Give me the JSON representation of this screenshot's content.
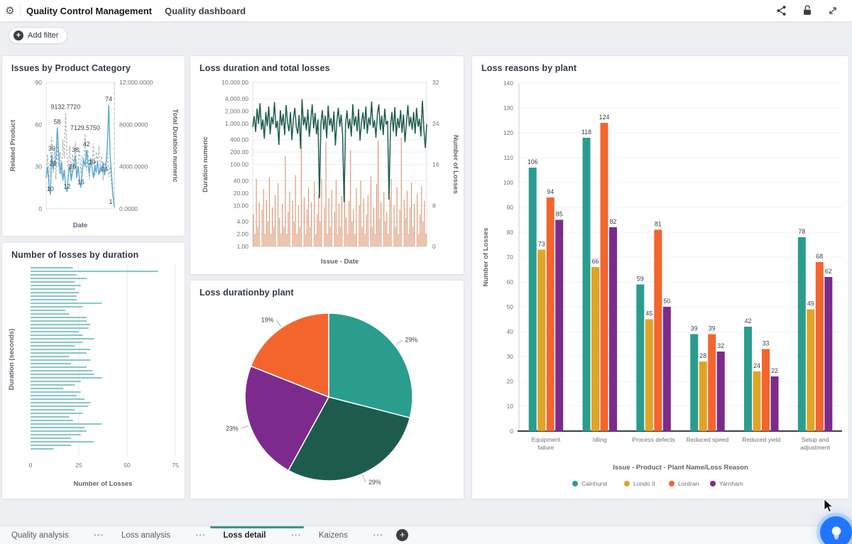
{
  "header": {
    "app_title": "Quality Control Management",
    "page_title": "Quality dashboard",
    "icons": [
      "gear-icon",
      "share-icon",
      "lock-icon",
      "expand-icon"
    ]
  },
  "filter_bar": {
    "add_filter_label": "Add filter"
  },
  "tabs": {
    "items": [
      {
        "label": "Quality analysis",
        "active": false
      },
      {
        "label": "Loss analysis",
        "active": false
      },
      {
        "label": "Loss detail",
        "active": true
      },
      {
        "label": "Kaizens",
        "active": false
      }
    ],
    "more_icon": "•••",
    "add_icon": "+"
  },
  "fab": {
    "icon": "lightbulb-icon",
    "color": "#2176ff"
  },
  "colors": {
    "teal": "#2a9d8f",
    "gold": "#e0a426",
    "orange": "#f4652e",
    "purple": "#7d2a8d",
    "dark_green_line": "#1f5c50",
    "salmon_bar": "#d98a64",
    "light_blue_line": "#58a8d2",
    "gray_dashed_line": "#a9b0b5",
    "light_teal_bar": "#8ec6c6",
    "tab_indicator": "#3d9488"
  },
  "chart_data": [
    {
      "type": "line",
      "title": "Issues by Product Category",
      "xlabel": "Date",
      "ylabel_left": "Related Product",
      "ylabel_right": "Total Duration numeric",
      "yticks_left": [
        "90",
        "60",
        "30",
        "0"
      ],
      "yticks_right": [
        "12,000.0000",
        "8000.0000",
        "4000.0000",
        "0.0000"
      ],
      "ylim_left": [
        0,
        90
      ],
      "ylim_right": [
        0,
        12000
      ],
      "grid": false,
      "series": [
        {
          "name": "Related Product",
          "color": "#58a8d2",
          "style": "solid",
          "axis": "left",
          "values": [
            22,
            30,
            18,
            10,
            39,
            28,
            34,
            35,
            58,
            40,
            25,
            33,
            20,
            28,
            16,
            12,
            24,
            31,
            20,
            26,
            32,
            38,
            22,
            30,
            21,
            15,
            27,
            35,
            30,
            42,
            33,
            25,
            36,
            29,
            22,
            31,
            26,
            34,
            24,
            30,
            27,
            33,
            24,
            31,
            45,
            74,
            38,
            25,
            10,
            1
          ]
        },
        {
          "name": "Total Duration numeric",
          "color": "#a9b0b5",
          "style": "dashed",
          "axis": "right",
          "values": [
            3000,
            5200,
            2600,
            4400,
            6800,
            3400,
            5600,
            2800,
            6200,
            4000,
            5400,
            3200,
            6600,
            4800,
            9132.772,
            5000,
            3600,
            6000,
            2900,
            5200,
            3800,
            6400,
            3000,
            4600,
            5800,
            3300,
            5000,
            4200,
            7129.575,
            3600,
            5600,
            2800,
            4800,
            3900,
            6200,
            3100,
            5400,
            4300,
            6000,
            3400,
            5000,
            2700,
            4400,
            3800,
            5600,
            3000,
            4000,
            2400,
            1200,
            300
          ]
        }
      ],
      "point_labels": [
        {
          "s": 0,
          "i": 3,
          "t": "10"
        },
        {
          "s": 0,
          "i": 4,
          "t": "39"
        },
        {
          "s": 0,
          "i": 5,
          "t": "28"
        },
        {
          "s": 0,
          "i": 8,
          "t": "58"
        },
        {
          "s": 0,
          "i": 15,
          "t": "12"
        },
        {
          "s": 0,
          "i": 19,
          "t": "26"
        },
        {
          "s": 0,
          "i": 21,
          "t": "38"
        },
        {
          "s": 0,
          "i": 25,
          "t": "15"
        },
        {
          "s": 0,
          "i": 29,
          "t": "42"
        },
        {
          "s": 0,
          "i": 33,
          "t": "29"
        },
        {
          "s": 0,
          "i": 42,
          "t": "24"
        },
        {
          "s": 0,
          "i": 45,
          "t": "74"
        },
        {
          "s": 0,
          "i": 49,
          "t": "1",
          "dx": -5
        },
        {
          "s": 1,
          "i": 14,
          "t": "9132.7720"
        },
        {
          "s": 1,
          "i": 28,
          "t": "7129.5750"
        }
      ]
    },
    {
      "type": "line-bar-combo",
      "title": "Loss duration and total losses",
      "xlabel": "Issue - Date",
      "ylabel_left": "Duration numeric",
      "ylabel_right": "Number of Losses",
      "yscale_left": "log",
      "yticks_left": [
        {
          "label": "10,000.00",
          "log": 4
        },
        {
          "label": "4,000.00",
          "log": 3.602
        },
        {
          "label": "2,000.00",
          "log": 3.301
        },
        {
          "label": "1,000.00",
          "log": 3
        },
        {
          "label": "400.00",
          "log": 2.602
        },
        {
          "label": "200.00",
          "log": 2.301
        },
        {
          "label": "100.00",
          "log": 2
        },
        {
          "label": "40.00",
          "log": 1.602
        },
        {
          "label": "20.00",
          "log": 1.301
        },
        {
          "label": "10.00",
          "log": 1
        },
        {
          "label": "4.00",
          "log": 0.602
        },
        {
          "label": "2.00",
          "log": 0.301
        },
        {
          "label": "1.00",
          "log": 0
        }
      ],
      "yticks_right": [
        "32",
        "24",
        "16",
        "8",
        "0"
      ],
      "ylim_left_log": [
        0,
        4
      ],
      "ylim_right": [
        0,
        32
      ],
      "grid": true,
      "line_series": {
        "name": "Duration numeric",
        "color": "#1f5c50",
        "values": [
          820,
          1500,
          620,
          2300,
          980,
          3100,
          700,
          1250,
          420,
          1900,
          860,
          2600,
          540,
          1450,
          950,
          3300,
          760,
          1150,
          300,
          2100,
          880,
          1700,
          520,
          2800,
          1050,
          640,
          1900,
          390,
          1300,
          2400,
          820,
          560,
          1600,
          240,
          3900,
          900,
          1450,
          680,
          2200,
          470,
          1150,
          2900,
          760,
          1800,
          540,
          1250,
          15,
          980,
          2100,
          700,
          1550,
          430,
          2700,
          880,
          1350,
          620,
          1950,
          290,
          1100,
          2400,
          830,
          1650,
          520,
          12,
          950,
          2050,
          740,
          1300,
          480,
          2950,
          860,
          1500,
          640,
          2250,
          380,
          1050,
          1850,
          720,
          2600,
          560,
          1400,
          900,
          3400,
          780,
          1200,
          450,
          1750,
          2900,
          680,
          1550,
          520,
          2300,
          940,
          1150,
          14,
          860,
          1900,
          630,
          2500,
          480,
          1350,
          770,
          2100,
          590,
          1650,
          350,
          1000,
          2800,
          850,
          1450,
          700,
          1900,
          560,
          2400,
          820,
          1300,
          480,
          3600,
          760,
          250,
          950
        ]
      },
      "bar_series": {
        "name": "Number of Losses",
        "color": "#d98a64",
        "values": [
          6,
          2,
          45,
          3,
          12,
          1,
          8,
          25,
          2,
          14,
          4,
          48,
          2,
          9,
          3,
          18,
          1,
          35,
          5,
          2,
          11,
          3,
          160,
          2,
          7,
          22,
          1,
          13,
          4,
          55,
          2,
          10,
          3,
          410,
          1,
          16,
          2,
          8,
          28,
          3,
          12,
          1,
          38,
          2,
          6,
          19,
          4,
          45,
          1,
          9,
          360,
          2,
          15,
          3,
          24,
          1,
          7,
          42,
          2,
          11,
          3,
          17,
          1,
          30,
          5,
          2,
          13,
          220,
          4,
          8,
          2,
          26,
          1,
          10,
          40,
          3,
          15,
          2,
          6,
          18,
          1,
          52,
          3,
          9,
          2,
          33,
          380,
          5,
          12,
          1,
          21,
          4,
          7,
          2,
          16,
          44,
          1,
          10,
          3,
          28,
          2,
          8,
          450,
          1,
          14,
          5,
          23,
          2,
          9,
          36,
          3,
          11,
          1,
          19,
          2,
          6,
          29,
          4,
          13,
          2
        ]
      }
    },
    {
      "type": "bar",
      "title": "Number of losses by duration",
      "orientation": "horizontal",
      "xlabel": "Number of Losses",
      "ylabel": "Duration (seconds)",
      "xticks": [
        "0",
        "25",
        "50",
        "75"
      ],
      "xlim": [
        0,
        75
      ],
      "grid": true,
      "bar_color": "#8ec6c6",
      "values": [
        22,
        66,
        24,
        29,
        23,
        26,
        23,
        25,
        24,
        24,
        37,
        27,
        18,
        20,
        29,
        29,
        31,
        30,
        25,
        27,
        33,
        27,
        23,
        31,
        29,
        20,
        31,
        21,
        29,
        32,
        33,
        37,
        26,
        23,
        17,
        26,
        24,
        28,
        31,
        30,
        23,
        27,
        20,
        22,
        37,
        28,
        29,
        26,
        21,
        33,
        21,
        12
      ]
    },
    {
      "type": "pie",
      "title": "Loss durationby plant",
      "slices": [
        {
          "label": "29%",
          "value": 29,
          "color": "#2a9d8f"
        },
        {
          "label": "29%",
          "value": 29,
          "color": "#1e5b4f"
        },
        {
          "label": "23%",
          "value": 23,
          "color": "#7d2a8d"
        },
        {
          "label": "19%",
          "value": 19,
          "color": "#f4652e"
        }
      ],
      "start_angle_deg": -90,
      "direction": "clockwise"
    },
    {
      "type": "bar",
      "title": "Loss reasons by plant",
      "orientation": "vertical-grouped",
      "xlabel": "Issue - Product - Plant Name/Loss Reason",
      "ylabel": "Number of Losses",
      "ylim": [
        0,
        140
      ],
      "ytick_step": 10,
      "grid": true,
      "legend_position": "bottom",
      "categories": [
        [
          "Equipment",
          "failure"
        ],
        [
          "Idling"
        ],
        [
          "Process defects"
        ],
        [
          "Reduced speed"
        ],
        [
          "Reduced yield"
        ],
        [
          "Setup and",
          "adjustment"
        ]
      ],
      "series": [
        {
          "name": "Cainhurst",
          "color": "#2a9d8f",
          "values": [
            106,
            118,
            59,
            39,
            42,
            78
          ]
        },
        {
          "name": "Londo II",
          "color": "#e0a426",
          "values": [
            73,
            66,
            45,
            28,
            24,
            49
          ]
        },
        {
          "name": "Lordran",
          "color": "#f4652e",
          "values": [
            94,
            124,
            81,
            39,
            33,
            68
          ]
        },
        {
          "name": "Yarnham",
          "color": "#7d2a8d",
          "values": [
            85,
            82,
            50,
            32,
            22,
            62
          ]
        }
      ]
    }
  ]
}
